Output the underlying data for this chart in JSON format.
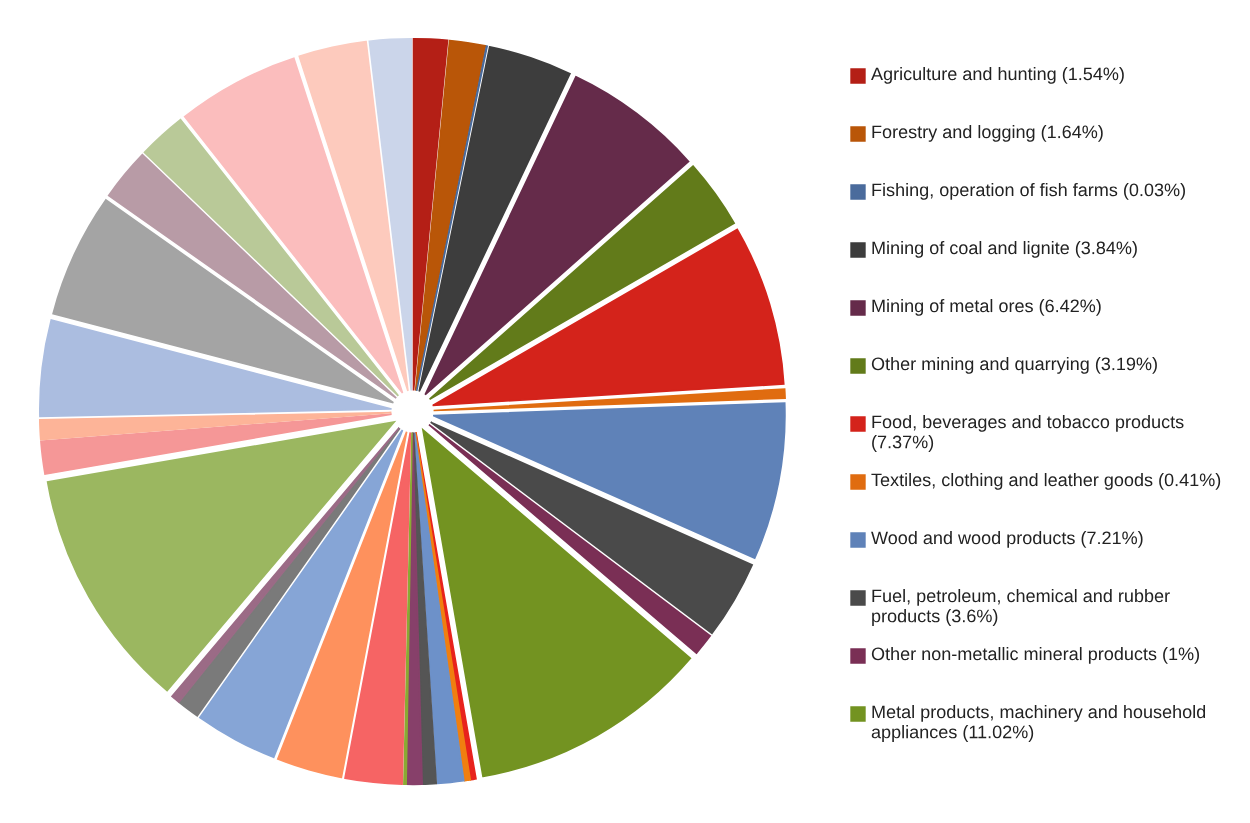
{
  "chart_data": {
    "type": "pie",
    "legend": "right",
    "categories": [
      "Agriculture and hunting (1.54%)",
      "Forestry and logging (1.64%)",
      "Fishing, operation of fish farms (0.03%)",
      "Mining of coal and lignite (3.84%)",
      "Mining of metal ores (6.42%)",
      "Other mining and quarrying (3.19%)",
      "Food, beverages and tobacco products (7.37%)",
      "Textiles, clothing and leather goods (0.41%)",
      "Wood and wood products (7.21%)",
      "Fuel, petroleum, chemical and rubber products (3.6%)",
      "Other non-metallic mineral products (1%)",
      "Metal products, machinery and household appliances (11.02%)",
      null,
      null,
      null,
      null,
      null,
      null,
      null,
      null,
      null,
      null,
      null,
      null,
      null,
      null,
      null,
      null,
      null,
      null,
      null,
      null,
      null
    ],
    "values": [
      1.54,
      1.64,
      0.03,
      3.84,
      6.42,
      3.19,
      7.37,
      0.41,
      7.21,
      3.6,
      1,
      11.02,
      0.25,
      0.25,
      1.2,
      0.6,
      0.7,
      0.1,
      2.6,
      3.0,
      3.8,
      1.0,
      0.4,
      11.1,
      1.5,
      0.9,
      4.4,
      5.7,
      2.4,
      2.2,
      5.63,
      3.1,
      1.9
    ],
    "colors": [
      "#b41f16",
      "#b95608",
      "#4a6b9c",
      "#3d3d3d",
      "#652b4a",
      "#627b1a",
      "#d4231b",
      "#e06c10",
      "#5f82b8",
      "#4a4a4a",
      "#7a2f55",
      "#739321",
      "#e8231d",
      "#f07f10",
      "#6d91c9",
      "#555555",
      "#87406a",
      "#8aaa33",
      "#f66464",
      "#fe915d",
      "#86a5d6",
      "#7a7a7a",
      "#9b6b86",
      "#9bb760",
      "#f59797",
      "#fdb498",
      "#abbde0",
      "#a4a4a4",
      "#b89ba6",
      "#b9c998",
      "#fbbdbd",
      "#fdcabd",
      "#cbd5ea"
    ]
  }
}
